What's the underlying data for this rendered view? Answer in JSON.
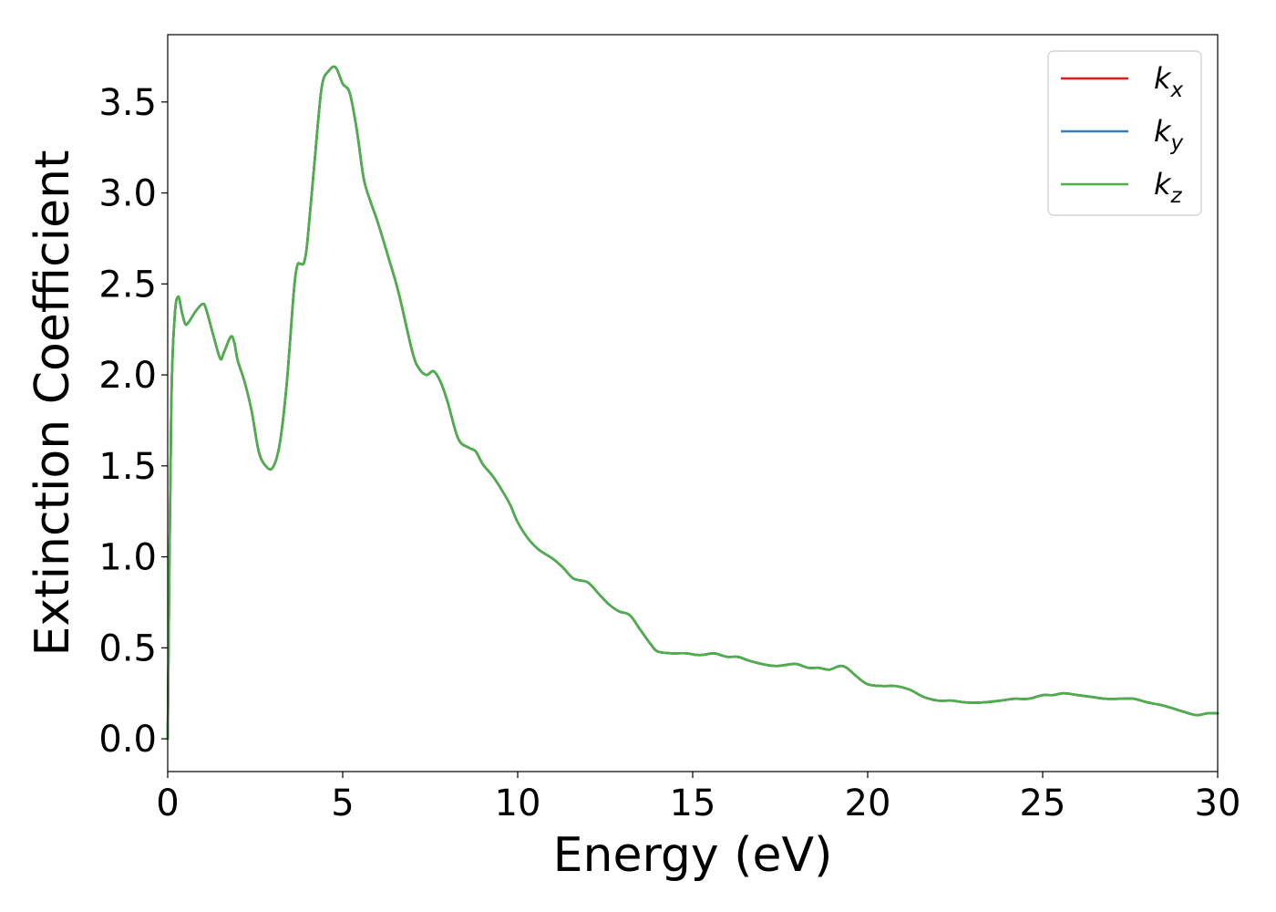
{
  "chart_data": {
    "type": "line",
    "xlabel": "Energy (eV)",
    "ylabel": "Extinction Coefficient",
    "xlim": [
      0,
      30
    ],
    "ylim": [
      -0.18,
      3.87
    ],
    "xticks": [
      0,
      5,
      10,
      15,
      20,
      25,
      30
    ],
    "xtick_labels": [
      "0",
      "5",
      "10",
      "15",
      "20",
      "25",
      "30"
    ],
    "yticks": [
      0.0,
      0.5,
      1.0,
      1.5,
      2.0,
      2.5,
      3.0,
      3.5
    ],
    "ytick_labels": [
      "0.0",
      "0.5",
      "1.0",
      "1.5",
      "2.0",
      "2.5",
      "3.0",
      "3.5"
    ],
    "grid": false,
    "legend_position": "top-right",
    "series": [
      {
        "name": "k",
        "subscript": "x",
        "color": "#e41a1c",
        "x": [
          0,
          0.1,
          0.2,
          0.3,
          0.4,
          0.5,
          0.6,
          0.8,
          1.0,
          1.1,
          1.3,
          1.5,
          1.6,
          1.8,
          1.9,
          2.0,
          2.2,
          2.4,
          2.6,
          2.8,
          3.0,
          3.2,
          3.4,
          3.6,
          3.7,
          3.8,
          3.9,
          4.0,
          4.2,
          4.4,
          4.6,
          4.8,
          5.0,
          5.2,
          5.4,
          5.6,
          5.8,
          6.0,
          6.3,
          6.6,
          7.0,
          7.2,
          7.4,
          7.6,
          7.8,
          8.0,
          8.3,
          8.6,
          8.8,
          9.0,
          9.3,
          9.6,
          9.8,
          10.0,
          10.3,
          10.6,
          11.0,
          11.3,
          11.6,
          12.0,
          12.3,
          12.6,
          12.9,
          13.2,
          13.5,
          13.8,
          14.0,
          14.4,
          14.8,
          15.2,
          15.6,
          15.8,
          16.0,
          16.3,
          16.6,
          17.0,
          17.4,
          17.8,
          18.0,
          18.3,
          18.6,
          18.9,
          19.2,
          19.4,
          19.7,
          20.0,
          20.4,
          20.8,
          21.2,
          21.6,
          22.0,
          22.4,
          22.8,
          23.3,
          23.8,
          24.2,
          24.6,
          25.0,
          25.3,
          25.6,
          26.0,
          26.4,
          26.8,
          27.2,
          27.6,
          28.0,
          28.5,
          29.0,
          29.4,
          29.7,
          30.0
        ],
        "y": [
          0.0,
          1.8,
          2.32,
          2.43,
          2.35,
          2.28,
          2.29,
          2.35,
          2.39,
          2.36,
          2.22,
          2.09,
          2.12,
          2.21,
          2.18,
          2.08,
          1.96,
          1.8,
          1.58,
          1.5,
          1.49,
          1.62,
          1.95,
          2.45,
          2.6,
          2.61,
          2.62,
          2.75,
          3.18,
          3.58,
          3.67,
          3.69,
          3.6,
          3.55,
          3.35,
          3.08,
          2.95,
          2.84,
          2.65,
          2.45,
          2.12,
          2.03,
          2.0,
          2.02,
          1.96,
          1.85,
          1.65,
          1.6,
          1.58,
          1.51,
          1.44,
          1.35,
          1.28,
          1.19,
          1.1,
          1.04,
          0.99,
          0.94,
          0.88,
          0.86,
          0.8,
          0.74,
          0.7,
          0.68,
          0.6,
          0.52,
          0.48,
          0.47,
          0.47,
          0.46,
          0.47,
          0.46,
          0.45,
          0.45,
          0.43,
          0.41,
          0.4,
          0.41,
          0.41,
          0.39,
          0.39,
          0.38,
          0.4,
          0.39,
          0.34,
          0.3,
          0.29,
          0.29,
          0.27,
          0.23,
          0.21,
          0.21,
          0.2,
          0.2,
          0.21,
          0.22,
          0.22,
          0.24,
          0.24,
          0.25,
          0.24,
          0.23,
          0.22,
          0.22,
          0.22,
          0.2,
          0.18,
          0.15,
          0.13,
          0.14,
          0.14
        ]
      },
      {
        "name": "k",
        "subscript": "y",
        "color": "#377eb8",
        "x": [
          0,
          0.1,
          0.2,
          0.3,
          0.4,
          0.5,
          0.6,
          0.8,
          1.0,
          1.1,
          1.3,
          1.5,
          1.6,
          1.8,
          1.9,
          2.0,
          2.2,
          2.4,
          2.6,
          2.8,
          3.0,
          3.2,
          3.4,
          3.6,
          3.7,
          3.8,
          3.9,
          4.0,
          4.2,
          4.4,
          4.6,
          4.8,
          5.0,
          5.2,
          5.4,
          5.6,
          5.8,
          6.0,
          6.3,
          6.6,
          7.0,
          7.2,
          7.4,
          7.6,
          7.8,
          8.0,
          8.3,
          8.6,
          8.8,
          9.0,
          9.3,
          9.6,
          9.8,
          10.0,
          10.3,
          10.6,
          11.0,
          11.3,
          11.6,
          12.0,
          12.3,
          12.6,
          12.9,
          13.2,
          13.5,
          13.8,
          14.0,
          14.4,
          14.8,
          15.2,
          15.6,
          15.8,
          16.0,
          16.3,
          16.6,
          17.0,
          17.4,
          17.8,
          18.0,
          18.3,
          18.6,
          18.9,
          19.2,
          19.4,
          19.7,
          20.0,
          20.4,
          20.8,
          21.2,
          21.6,
          22.0,
          22.4,
          22.8,
          23.3,
          23.8,
          24.2,
          24.6,
          25.0,
          25.3,
          25.6,
          26.0,
          26.4,
          26.8,
          27.2,
          27.6,
          28.0,
          28.5,
          29.0,
          29.4,
          29.7,
          30.0
        ],
        "y": [
          0.0,
          1.8,
          2.32,
          2.43,
          2.35,
          2.28,
          2.29,
          2.35,
          2.39,
          2.36,
          2.22,
          2.09,
          2.12,
          2.21,
          2.18,
          2.08,
          1.96,
          1.8,
          1.58,
          1.5,
          1.49,
          1.62,
          1.95,
          2.45,
          2.6,
          2.61,
          2.62,
          2.75,
          3.18,
          3.58,
          3.67,
          3.69,
          3.6,
          3.55,
          3.35,
          3.08,
          2.95,
          2.84,
          2.65,
          2.45,
          2.12,
          2.03,
          2.0,
          2.02,
          1.96,
          1.85,
          1.65,
          1.6,
          1.58,
          1.51,
          1.44,
          1.35,
          1.28,
          1.19,
          1.1,
          1.04,
          0.99,
          0.94,
          0.88,
          0.86,
          0.8,
          0.74,
          0.7,
          0.68,
          0.6,
          0.52,
          0.48,
          0.47,
          0.47,
          0.46,
          0.47,
          0.46,
          0.45,
          0.45,
          0.43,
          0.41,
          0.4,
          0.41,
          0.41,
          0.39,
          0.39,
          0.38,
          0.4,
          0.39,
          0.34,
          0.3,
          0.29,
          0.29,
          0.27,
          0.23,
          0.21,
          0.21,
          0.2,
          0.2,
          0.21,
          0.22,
          0.22,
          0.24,
          0.24,
          0.25,
          0.24,
          0.23,
          0.22,
          0.22,
          0.22,
          0.2,
          0.18,
          0.15,
          0.13,
          0.14,
          0.14
        ]
      },
      {
        "name": "k",
        "subscript": "z",
        "color": "#4daf4a",
        "x": [
          0,
          0.1,
          0.2,
          0.3,
          0.4,
          0.5,
          0.6,
          0.8,
          1.0,
          1.1,
          1.3,
          1.5,
          1.6,
          1.8,
          1.9,
          2.0,
          2.2,
          2.4,
          2.6,
          2.8,
          3.0,
          3.2,
          3.4,
          3.6,
          3.7,
          3.8,
          3.9,
          4.0,
          4.2,
          4.4,
          4.6,
          4.8,
          5.0,
          5.2,
          5.4,
          5.6,
          5.8,
          6.0,
          6.3,
          6.6,
          7.0,
          7.2,
          7.4,
          7.6,
          7.8,
          8.0,
          8.3,
          8.6,
          8.8,
          9.0,
          9.3,
          9.6,
          9.8,
          10.0,
          10.3,
          10.6,
          11.0,
          11.3,
          11.6,
          12.0,
          12.3,
          12.6,
          12.9,
          13.2,
          13.5,
          13.8,
          14.0,
          14.4,
          14.8,
          15.2,
          15.6,
          15.8,
          16.0,
          16.3,
          16.6,
          17.0,
          17.4,
          17.8,
          18.0,
          18.3,
          18.6,
          18.9,
          19.2,
          19.4,
          19.7,
          20.0,
          20.4,
          20.8,
          21.2,
          21.6,
          22.0,
          22.4,
          22.8,
          23.3,
          23.8,
          24.2,
          24.6,
          25.0,
          25.3,
          25.6,
          26.0,
          26.4,
          26.8,
          27.2,
          27.6,
          28.0,
          28.5,
          29.0,
          29.4,
          29.7,
          30.0
        ],
        "y": [
          0.0,
          1.8,
          2.32,
          2.43,
          2.35,
          2.28,
          2.29,
          2.35,
          2.39,
          2.36,
          2.22,
          2.09,
          2.12,
          2.21,
          2.18,
          2.08,
          1.96,
          1.8,
          1.58,
          1.5,
          1.49,
          1.62,
          1.95,
          2.45,
          2.6,
          2.61,
          2.62,
          2.75,
          3.18,
          3.58,
          3.67,
          3.69,
          3.6,
          3.55,
          3.35,
          3.08,
          2.95,
          2.84,
          2.65,
          2.45,
          2.12,
          2.03,
          2.0,
          2.02,
          1.96,
          1.85,
          1.65,
          1.6,
          1.58,
          1.51,
          1.44,
          1.35,
          1.28,
          1.19,
          1.1,
          1.04,
          0.99,
          0.94,
          0.88,
          0.86,
          0.8,
          0.74,
          0.7,
          0.68,
          0.6,
          0.52,
          0.48,
          0.47,
          0.47,
          0.46,
          0.47,
          0.46,
          0.45,
          0.45,
          0.43,
          0.41,
          0.4,
          0.41,
          0.41,
          0.39,
          0.39,
          0.38,
          0.4,
          0.39,
          0.34,
          0.3,
          0.29,
          0.29,
          0.27,
          0.23,
          0.21,
          0.21,
          0.2,
          0.2,
          0.21,
          0.22,
          0.22,
          0.24,
          0.24,
          0.25,
          0.24,
          0.23,
          0.22,
          0.22,
          0.22,
          0.2,
          0.18,
          0.15,
          0.13,
          0.14,
          0.14
        ]
      }
    ]
  }
}
